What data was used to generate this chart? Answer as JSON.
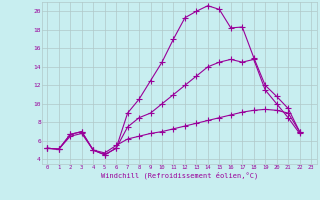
{
  "xlabel": "Windchill (Refroidissement éolien,°C)",
  "bg_color": "#c8eef0",
  "line_color": "#990099",
  "grid_color": "#b0c8c8",
  "xlim": [
    -0.5,
    23.5
  ],
  "ylim": [
    3.5,
    21.0
  ],
  "yticks": [
    4,
    6,
    8,
    10,
    12,
    14,
    16,
    18,
    20
  ],
  "xticks": [
    0,
    1,
    2,
    3,
    4,
    5,
    6,
    7,
    8,
    9,
    10,
    11,
    12,
    13,
    14,
    15,
    16,
    17,
    18,
    19,
    20,
    21,
    22,
    23
  ],
  "line1_x": [
    0,
    1,
    2,
    3,
    4,
    5,
    6,
    7,
    8,
    9,
    10,
    11,
    12,
    13,
    14,
    15,
    16,
    17,
    18,
    19,
    20,
    21,
    22
  ],
  "line1_y": [
    5.2,
    5.1,
    6.7,
    7.0,
    5.0,
    4.5,
    5.2,
    9.0,
    10.5,
    12.5,
    14.5,
    17.0,
    19.3,
    20.0,
    20.6,
    20.2,
    18.2,
    18.3,
    15.0,
    12.0,
    10.8,
    9.5,
    7.0
  ],
  "line2_x": [
    0,
    1,
    2,
    3,
    4,
    5,
    6,
    7,
    8,
    9,
    10,
    11,
    12,
    13,
    14,
    15,
    16,
    17,
    18,
    19,
    20,
    21,
    22
  ],
  "line2_y": [
    5.2,
    5.1,
    6.7,
    7.0,
    5.0,
    4.5,
    5.2,
    7.5,
    8.5,
    9.0,
    10.0,
    11.0,
    12.0,
    13.0,
    14.0,
    14.5,
    14.8,
    14.5,
    14.8,
    11.5,
    10.0,
    8.5,
    6.8
  ],
  "line3_x": [
    0,
    1,
    2,
    3,
    4,
    5,
    6,
    7,
    8,
    9,
    10,
    11,
    12,
    13,
    14,
    15,
    16,
    17,
    18,
    19,
    20,
    21,
    22
  ],
  "line3_y": [
    5.2,
    5.1,
    6.5,
    6.8,
    5.0,
    4.7,
    5.5,
    6.2,
    6.5,
    6.8,
    7.0,
    7.3,
    7.6,
    7.9,
    8.2,
    8.5,
    8.8,
    9.1,
    9.3,
    9.4,
    9.3,
    9.0,
    7.0
  ]
}
